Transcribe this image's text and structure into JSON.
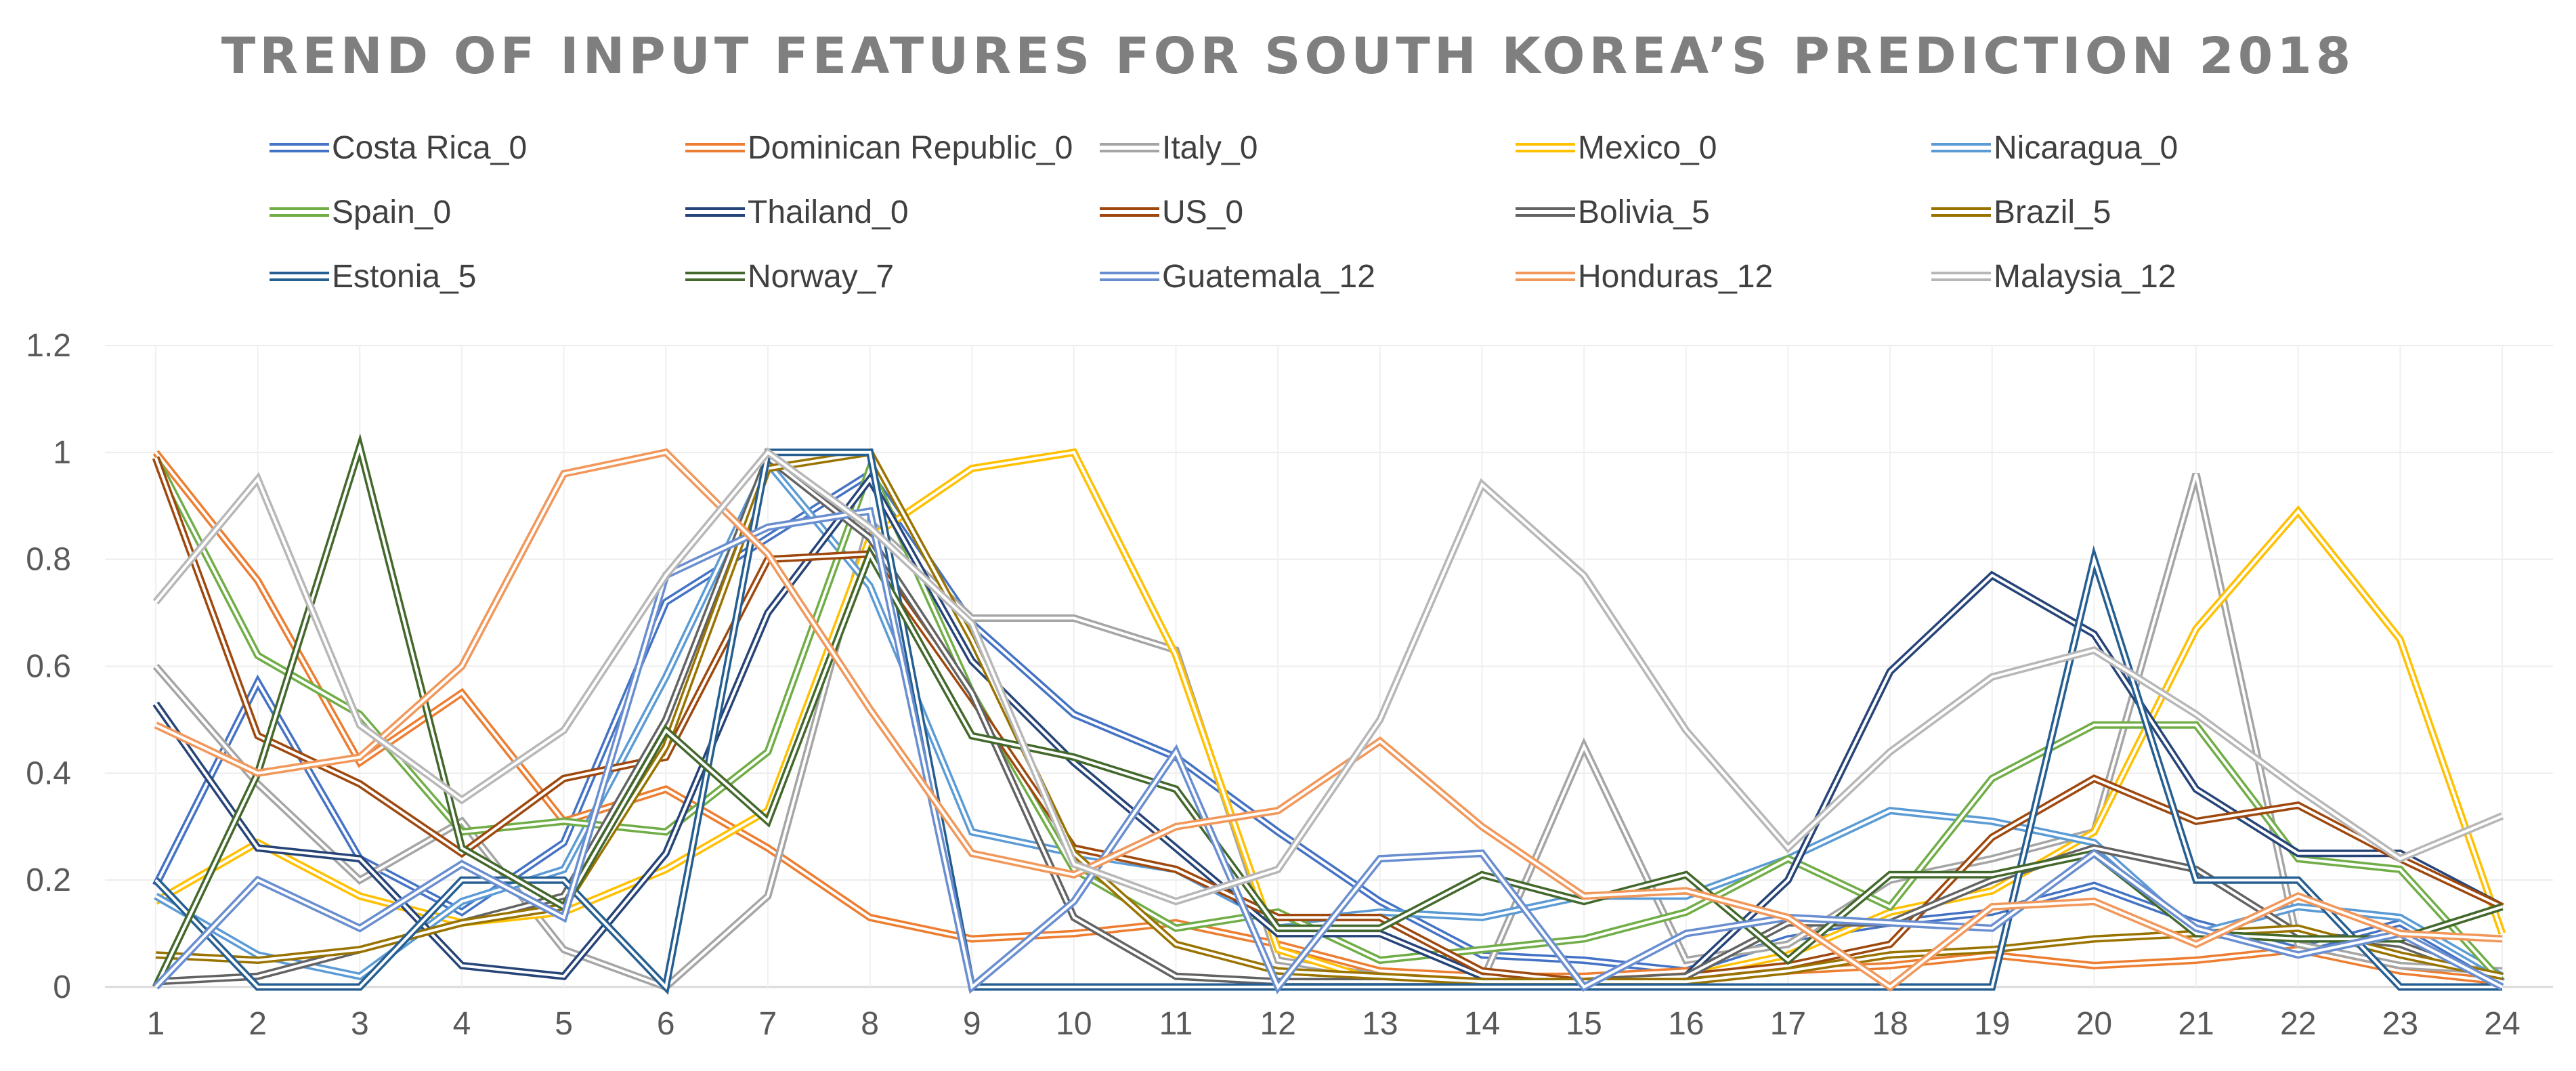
{
  "chart_data": {
    "type": "line",
    "title": "TREND OF INPUT FEATURES FOR SOUTH KOREA’S PREDICTION 2018",
    "xlabel": "",
    "ylabel": "",
    "x": [
      1,
      2,
      3,
      4,
      5,
      6,
      7,
      8,
      9,
      10,
      11,
      12,
      13,
      14,
      15,
      16,
      17,
      18,
      19,
      20,
      21,
      22,
      23,
      24
    ],
    "ylim": [
      0,
      1.2
    ],
    "yticks": [
      "0",
      "0.2",
      "0.4",
      "0.6",
      "0.8",
      "1",
      "1.2"
    ],
    "xticks": [
      "1",
      "2",
      "3",
      "4",
      "5",
      "6",
      "7",
      "8",
      "9",
      "10",
      "11",
      "12",
      "13",
      "14",
      "15",
      "16",
      "17",
      "18",
      "19",
      "20",
      "21",
      "22",
      "23",
      "24"
    ],
    "grid": true,
    "legend_position": "top",
    "line_style": "double",
    "series": [
      {
        "name": "Costa Rica_0",
        "color": "#4472C4",
        "values": [
          0.19,
          0.57,
          0.24,
          0.14,
          0.27,
          0.72,
          0.84,
          0.96,
          0.68,
          0.51,
          0.43,
          0.29,
          0.16,
          0.06,
          0.05,
          0.03,
          0.09,
          0.12,
          0.14,
          0.19,
          0.12,
          0.07,
          0.12,
          0.01
        ]
      },
      {
        "name": "Dominican Republic_0",
        "color": "#ED7D31",
        "values": [
          1.0,
          0.76,
          0.42,
          0.55,
          0.31,
          0.37,
          0.26,
          0.13,
          0.09,
          0.1,
          0.12,
          0.08,
          0.03,
          0.02,
          0.02,
          0.03,
          0.03,
          0.04,
          0.06,
          0.04,
          0.05,
          0.07,
          0.03,
          0.01
        ]
      },
      {
        "name": "Italy_0",
        "color": "#A5A5A5",
        "values": [
          0.6,
          0.38,
          0.2,
          0.31,
          0.07,
          0.0,
          0.17,
          0.87,
          0.69,
          0.69,
          0.63,
          0.05,
          0.02,
          0.01,
          0.45,
          0.05,
          0.08,
          0.2,
          0.24,
          0.29,
          0.96,
          0.08,
          0.04,
          0.03
        ]
      },
      {
        "name": "Mexico_0",
        "color": "#FFC000",
        "values": [
          0.16,
          0.27,
          0.17,
          0.12,
          0.14,
          0.22,
          0.33,
          0.84,
          0.97,
          1.0,
          0.62,
          0.07,
          0.01,
          0.01,
          0.01,
          0.02,
          0.06,
          0.14,
          0.18,
          0.29,
          0.67,
          0.89,
          0.65,
          0.1
        ]
      },
      {
        "name": "Nicaragua_0",
        "color": "#5B9BD5",
        "values": [
          0.17,
          0.06,
          0.02,
          0.16,
          0.22,
          0.58,
          0.98,
          0.75,
          0.29,
          0.25,
          0.22,
          0.12,
          0.14,
          0.13,
          0.17,
          0.17,
          0.24,
          0.33,
          0.31,
          0.27,
          0.1,
          0.15,
          0.13,
          0.02
        ]
      },
      {
        "name": "Spain_0",
        "color": "#70AD47",
        "values": [
          0.99,
          0.62,
          0.51,
          0.29,
          0.31,
          0.29,
          0.44,
          0.97,
          0.55,
          0.22,
          0.11,
          0.14,
          0.05,
          0.07,
          0.09,
          0.14,
          0.24,
          0.15,
          0.39,
          0.49,
          0.49,
          0.24,
          0.22,
          0.01
        ]
      },
      {
        "name": "Thailand_0",
        "color": "#264478",
        "values": [
          0.53,
          0.26,
          0.24,
          0.04,
          0.02,
          0.25,
          0.7,
          0.95,
          0.61,
          0.42,
          0.26,
          0.1,
          0.1,
          0.02,
          0.01,
          0.02,
          0.2,
          0.59,
          0.77,
          0.66,
          0.37,
          0.25,
          0.25,
          0.15
        ]
      },
      {
        "name": "US_0",
        "color": "#9E480E",
        "values": [
          0.99,
          0.47,
          0.38,
          0.25,
          0.39,
          0.43,
          0.8,
          0.81,
          0.54,
          0.26,
          0.22,
          0.13,
          0.13,
          0.03,
          0.01,
          0.02,
          0.04,
          0.08,
          0.28,
          0.39,
          0.31,
          0.34,
          0.24,
          0.15
        ]
      },
      {
        "name": "Bolivia_5",
        "color": "#636363",
        "values": [
          0.01,
          0.02,
          0.07,
          0.12,
          0.17,
          0.5,
          0.99,
          0.84,
          0.55,
          0.13,
          0.02,
          0.01,
          0.01,
          0.01,
          0.01,
          0.02,
          0.12,
          0.12,
          0.2,
          0.26,
          0.22,
          0.1,
          0.08,
          0.01
        ]
      },
      {
        "name": "Brazil_5",
        "color": "#997300",
        "values": [
          0.06,
          0.05,
          0.07,
          0.12,
          0.15,
          0.45,
          0.97,
          1.0,
          0.65,
          0.25,
          0.08,
          0.03,
          0.02,
          0.01,
          0.01,
          0.01,
          0.03,
          0.06,
          0.07,
          0.09,
          0.1,
          0.11,
          0.06,
          0.02
        ]
      },
      {
        "name": "Estonia_5",
        "color": "#255E91",
        "values": [
          0.2,
          0.0,
          0.0,
          0.2,
          0.2,
          0.0,
          1.0,
          1.0,
          0.0,
          0.0,
          0.0,
          0.0,
          0.0,
          0.0,
          0.0,
          0.0,
          0.0,
          0.0,
          0.0,
          0.8,
          0.2,
          0.2,
          0.0,
          0.0
        ]
      },
      {
        "name": "Norway_7",
        "color": "#43682B",
        "values": [
          0.0,
          0.4,
          1.01,
          0.26,
          0.15,
          0.48,
          0.31,
          0.81,
          0.47,
          0.43,
          0.37,
          0.11,
          0.11,
          0.21,
          0.16,
          0.21,
          0.05,
          0.21,
          0.21,
          0.25,
          0.1,
          0.09,
          0.09,
          0.15
        ]
      },
      {
        "name": "Guatemala_12",
        "color": "#698ED0",
        "values": [
          0.0,
          0.2,
          0.11,
          0.23,
          0.13,
          0.77,
          0.86,
          0.89,
          0.0,
          0.16,
          0.44,
          0.0,
          0.24,
          0.25,
          0.0,
          0.1,
          0.13,
          0.12,
          0.11,
          0.25,
          0.11,
          0.06,
          0.1,
          0.0
        ]
      },
      {
        "name": "Honduras_12",
        "color": "#F1975A",
        "values": [
          0.49,
          0.4,
          0.43,
          0.6,
          0.96,
          1.0,
          0.81,
          0.52,
          0.25,
          0.21,
          0.3,
          0.33,
          0.46,
          0.3,
          0.17,
          0.18,
          0.13,
          0.0,
          0.15,
          0.16,
          0.08,
          0.17,
          0.1,
          0.09
        ]
      },
      {
        "name": "Malaysia_12",
        "color": "#B7B7B7",
        "values": [
          0.72,
          0.95,
          0.49,
          0.35,
          0.48,
          0.77,
          1.0,
          0.86,
          0.68,
          0.23,
          0.16,
          0.22,
          0.5,
          0.94,
          0.77,
          0.48,
          0.26,
          0.44,
          0.58,
          0.63,
          0.51,
          0.37,
          0.24,
          0.32
        ]
      }
    ]
  }
}
